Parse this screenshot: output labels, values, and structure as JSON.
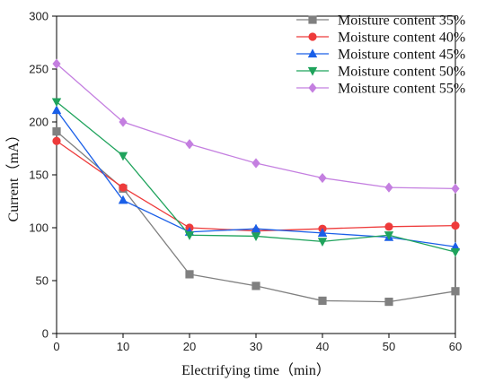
{
  "chart_data": {
    "type": "line",
    "title": "",
    "xlabel": "Electrifying time（min）",
    "ylabel": "Current（mA）",
    "xlim": [
      0,
      60
    ],
    "ylim": [
      0,
      300
    ],
    "x_ticks": [
      "0",
      "10",
      "20",
      "30",
      "40",
      "50",
      "60"
    ],
    "y_ticks": [
      "0",
      "50",
      "100",
      "150",
      "200",
      "250",
      "300"
    ],
    "x": [
      0,
      10,
      20,
      30,
      40,
      50,
      60
    ],
    "grid": false,
    "legend_position": "top-right",
    "series": [
      {
        "name": "Moisture content 35%",
        "color": "#808080",
        "marker": "square",
        "values": [
          191,
          137,
          56,
          45,
          31,
          30,
          40
        ]
      },
      {
        "name": "Moisture content 40%",
        "color": "#ee3b3b",
        "marker": "circle",
        "values": [
          182,
          138,
          100,
          97,
          99,
          101,
          102
        ]
      },
      {
        "name": "Moisture content 45%",
        "color": "#1a5fe8",
        "marker": "triangle-up",
        "values": [
          211,
          126,
          96,
          99,
          95,
          91,
          82
        ]
      },
      {
        "name": "Moisture content 50%",
        "color": "#1fa35c",
        "marker": "triangle-down",
        "values": [
          219,
          168,
          93,
          92,
          87,
          93,
          77
        ]
      },
      {
        "name": "Moisture content 55%",
        "color": "#c47fe0",
        "marker": "diamond",
        "values": [
          255,
          200,
          179,
          161,
          147,
          138,
          137
        ]
      }
    ]
  }
}
